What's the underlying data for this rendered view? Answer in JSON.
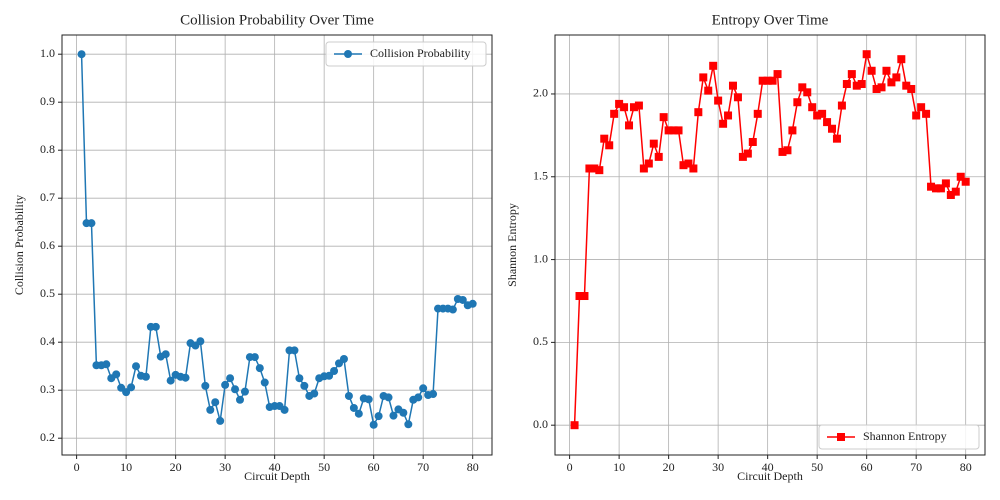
{
  "chart_data": [
    {
      "type": "line",
      "title": "Collision Probability Over Time",
      "x_label": "Circuit Depth",
      "y_label": "Collision Probability",
      "x": [
        1,
        2,
        3,
        4,
        5,
        6,
        7,
        8,
        9,
        10,
        11,
        12,
        13,
        14,
        15,
        16,
        17,
        18,
        19,
        20,
        21,
        22,
        23,
        24,
        25,
        26,
        27,
        28,
        29,
        30,
        31,
        32,
        33,
        34,
        35,
        36,
        37,
        38,
        39,
        40,
        41,
        42,
        43,
        44,
        45,
        46,
        47,
        48,
        49,
        50,
        51,
        52,
        53,
        54,
        55,
        56,
        57,
        58,
        59,
        60,
        61,
        62,
        63,
        64,
        65,
        66,
        67,
        68,
        69,
        70,
        71,
        72,
        73,
        74,
        75,
        76,
        77,
        78,
        79,
        80
      ],
      "series": [
        {
          "name": "Collision Probability",
          "color": "#1f77b4",
          "marker": "o",
          "values": [
            1.0,
            0.648,
            0.648,
            0.352,
            0.352,
            0.354,
            0.325,
            0.333,
            0.305,
            0.296,
            0.306,
            0.35,
            0.33,
            0.328,
            0.432,
            0.432,
            0.37,
            0.375,
            0.32,
            0.332,
            0.328,
            0.326,
            0.398,
            0.393,
            0.402,
            0.309,
            0.259,
            0.275,
            0.236,
            0.311,
            0.325,
            0.302,
            0.28,
            0.297,
            0.369,
            0.369,
            0.346,
            0.316,
            0.265,
            0.267,
            0.267,
            0.259,
            0.383,
            0.383,
            0.325,
            0.309,
            0.288,
            0.293,
            0.325,
            0.329,
            0.33,
            0.34,
            0.356,
            0.365,
            0.288,
            0.263,
            0.251,
            0.283,
            0.281,
            0.228,
            0.246,
            0.288,
            0.285,
            0.247,
            0.26,
            0.253,
            0.229,
            0.28,
            0.285,
            0.304,
            0.29,
            0.292,
            0.47,
            0.47,
            0.47,
            0.468,
            0.49,
            0.488,
            0.477,
            0.48
          ]
        }
      ],
      "xlim": [
        -2.95,
        83.9
      ],
      "xticks": [
        0,
        10,
        20,
        30,
        40,
        50,
        60,
        70,
        80
      ],
      "ylim": [
        0.165,
        1.04
      ],
      "yticks": [
        0.2,
        0.3,
        0.4,
        0.5,
        0.6,
        0.7,
        0.8,
        0.9,
        {
          "value": 1.0,
          "label": "1.0"
        }
      ],
      "grid": true,
      "legend": "upper right"
    },
    {
      "type": "line",
      "title": "Entropy Over Time",
      "x_label": "Circuit Depth",
      "y_label": "Shannon Entropy",
      "x": [
        1,
        2,
        3,
        4,
        5,
        6,
        7,
        8,
        9,
        10,
        11,
        12,
        13,
        14,
        15,
        16,
        17,
        18,
        19,
        20,
        21,
        22,
        23,
        24,
        25,
        26,
        27,
        28,
        29,
        30,
        31,
        32,
        33,
        34,
        35,
        36,
        37,
        38,
        39,
        40,
        41,
        42,
        43,
        44,
        45,
        46,
        47,
        48,
        49,
        50,
        51,
        52,
        53,
        54,
        55,
        56,
        57,
        58,
        59,
        60,
        61,
        62,
        63,
        64,
        65,
        66,
        67,
        68,
        69,
        70,
        71,
        72,
        73,
        74,
        75,
        76,
        77,
        78,
        79,
        80
      ],
      "series": [
        {
          "name": "Shannon Entropy",
          "color": "#ff0000",
          "marker": "s",
          "values": [
            0.0,
            0.78,
            0.78,
            1.55,
            1.55,
            1.54,
            1.73,
            1.69,
            1.88,
            1.94,
            1.92,
            1.81,
            1.92,
            1.93,
            1.55,
            1.58,
            1.7,
            1.62,
            1.86,
            1.78,
            1.78,
            1.78,
            1.57,
            1.58,
            1.55,
            1.89,
            2.1,
            2.02,
            2.17,
            1.96,
            1.82,
            1.87,
            2.05,
            1.98,
            1.62,
            1.64,
            1.71,
            1.88,
            2.08,
            2.08,
            2.08,
            2.12,
            1.65,
            1.66,
            1.78,
            1.95,
            2.04,
            2.01,
            1.92,
            1.87,
            1.88,
            1.83,
            1.79,
            1.73,
            1.93,
            2.06,
            2.12,
            2.05,
            2.06,
            2.24,
            2.14,
            2.03,
            2.04,
            2.14,
            2.07,
            2.1,
            2.21,
            2.05,
            2.03,
            1.87,
            1.92,
            1.88,
            1.44,
            1.43,
            1.43,
            1.46,
            1.39,
            1.41,
            1.5,
            1.47
          ]
        }
      ],
      "xlim": [
        -2.95,
        83.9
      ],
      "xticks": [
        0,
        10,
        20,
        30,
        40,
        50,
        60,
        70,
        80
      ],
      "ylim": [
        -0.18,
        2.356
      ],
      "yticks": [
        {
          "value": 0.0,
          "label": "0.0"
        },
        0.5,
        {
          "value": 1.0,
          "label": "1.0"
        },
        1.5,
        {
          "value": 2.0,
          "label": "2.0"
        }
      ],
      "grid": true,
      "legend": "lower right"
    }
  ]
}
